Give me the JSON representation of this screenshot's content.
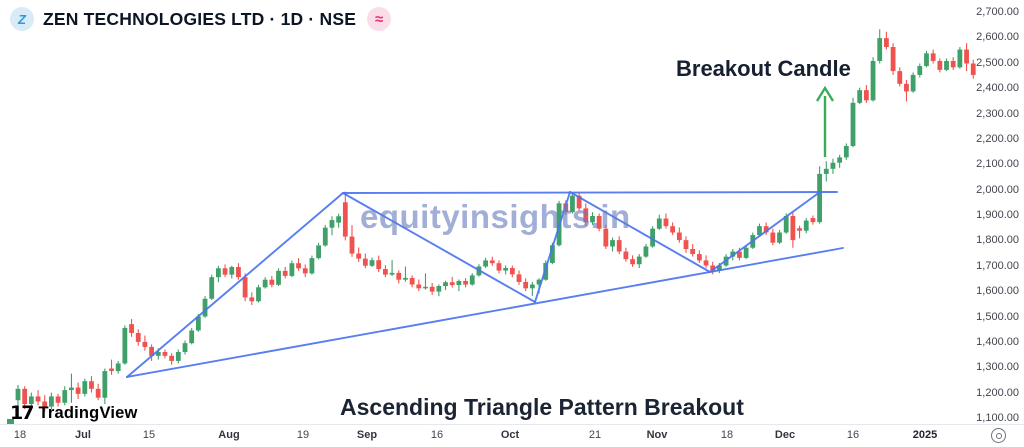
{
  "header": {
    "symbol_title": "ZEN TECHNOLOGIES LTD · 1D · NSE",
    "logo_glyph": "Z",
    "badge_glyph": "≈"
  },
  "annotations": {
    "watermark": "equityinsights.in",
    "breakout_label": "Breakout Candle",
    "pattern_label": "Ascending Triangle Pattern Breakout"
  },
  "attribution": {
    "glyph": "17",
    "text": "TradingView"
  },
  "icons": {
    "settings": "gear-icon"
  },
  "colors": {
    "up": "#40a06a",
    "down": "#ef5350",
    "trendline": "#4a74f0",
    "arrow": "#3cab57",
    "watermark": "rgba(104,124,189,0.62)"
  },
  "chart_data": {
    "type": "candlestick",
    "title": "ZEN TECHNOLOGIES LTD",
    "interval": "1D",
    "exchange": "NSE",
    "ylim": [
      1050,
      2730
    ],
    "grid": false,
    "y_axis": {
      "ticks": [
        {
          "label": "2,700.00",
          "price": 2700
        },
        {
          "label": "2,600.00",
          "price": 2600
        },
        {
          "label": "2,500.00",
          "price": 2500
        },
        {
          "label": "2,400.00",
          "price": 2400
        },
        {
          "label": "2,300.00",
          "price": 2300
        },
        {
          "label": "2,200.00",
          "price": 2200
        },
        {
          "label": "2,100.00",
          "price": 2100
        },
        {
          "label": "2,000.00",
          "price": 2000
        },
        {
          "label": "1,900.00",
          "price": 1900
        },
        {
          "label": "1,800.00",
          "price": 1800
        },
        {
          "label": "1,700.00",
          "price": 1700
        },
        {
          "label": "1,600.00",
          "price": 1600
        },
        {
          "label": "1,500.00",
          "price": 1500
        },
        {
          "label": "1,400.00",
          "price": 1400
        },
        {
          "label": "1,300.00",
          "price": 1300
        },
        {
          "label": "1,200.00",
          "price": 1200
        },
        {
          "label": "1,100.00",
          "price": 1100
        }
      ]
    },
    "x_axis": {
      "ticks": [
        {
          "label": "18",
          "x": 20,
          "kind": "d"
        },
        {
          "label": "Jul",
          "x": 83,
          "kind": "m"
        },
        {
          "label": "15",
          "x": 149,
          "kind": "d"
        },
        {
          "label": "Aug",
          "x": 229,
          "kind": "m"
        },
        {
          "label": "19",
          "x": 303,
          "kind": "d"
        },
        {
          "label": "Sep",
          "x": 367,
          "kind": "m"
        },
        {
          "label": "16",
          "x": 437,
          "kind": "d"
        },
        {
          "label": "Oct",
          "x": 510,
          "kind": "m"
        },
        {
          "label": "21",
          "x": 595,
          "kind": "d"
        },
        {
          "label": "Nov",
          "x": 657,
          "kind": "m"
        },
        {
          "label": "18",
          "x": 727,
          "kind": "d"
        },
        {
          "label": "Dec",
          "x": 785,
          "kind": "m"
        },
        {
          "label": "16",
          "x": 853,
          "kind": "d"
        },
        {
          "label": "2025",
          "x": 925,
          "kind": "y"
        }
      ]
    },
    "candles": [
      [
        1170,
        1230,
        1150,
        1215
      ],
      [
        1215,
        1225,
        1135,
        1155
      ],
      [
        1155,
        1200,
        1140,
        1185
      ],
      [
        1185,
        1210,
        1150,
        1165
      ],
      [
        1165,
        1190,
        1125,
        1145
      ],
      [
        1145,
        1200,
        1135,
        1185
      ],
      [
        1185,
        1195,
        1145,
        1160
      ],
      [
        1160,
        1225,
        1150,
        1210
      ],
      [
        1210,
        1275,
        1160,
        1220
      ],
      [
        1220,
        1240,
        1175,
        1195
      ],
      [
        1195,
        1255,
        1185,
        1245
      ],
      [
        1245,
        1265,
        1200,
        1215
      ],
      [
        1215,
        1235,
        1170,
        1180
      ],
      [
        1180,
        1295,
        1155,
        1285
      ],
      [
        1295,
        1330,
        1270,
        1285
      ],
      [
        1285,
        1325,
        1275,
        1315
      ],
      [
        1315,
        1465,
        1310,
        1455
      ],
      [
        1470,
        1490,
        1420,
        1435
      ],
      [
        1435,
        1450,
        1385,
        1400
      ],
      [
        1400,
        1425,
        1365,
        1380
      ],
      [
        1380,
        1390,
        1325,
        1345
      ],
      [
        1345,
        1375,
        1330,
        1360
      ],
      [
        1360,
        1370,
        1335,
        1345
      ],
      [
        1345,
        1355,
        1310,
        1325
      ],
      [
        1325,
        1370,
        1315,
        1360
      ],
      [
        1360,
        1405,
        1350,
        1395
      ],
      [
        1395,
        1455,
        1390,
        1445
      ],
      [
        1445,
        1510,
        1440,
        1500
      ],
      [
        1500,
        1580,
        1495,
        1570
      ],
      [
        1570,
        1665,
        1565,
        1655
      ],
      [
        1655,
        1700,
        1635,
        1690
      ],
      [
        1690,
        1705,
        1655,
        1665
      ],
      [
        1665,
        1700,
        1650,
        1695
      ],
      [
        1695,
        1710,
        1645,
        1655
      ],
      [
        1655,
        1670,
        1560,
        1575
      ],
      [
        1575,
        1595,
        1545,
        1560
      ],
      [
        1560,
        1625,
        1555,
        1615
      ],
      [
        1615,
        1655,
        1610,
        1645
      ],
      [
        1645,
        1660,
        1615,
        1625
      ],
      [
        1625,
        1690,
        1620,
        1680
      ],
      [
        1680,
        1695,
        1650,
        1660
      ],
      [
        1660,
        1720,
        1655,
        1710
      ],
      [
        1710,
        1730,
        1680,
        1690
      ],
      [
        1690,
        1705,
        1655,
        1670
      ],
      [
        1670,
        1740,
        1665,
        1730
      ],
      [
        1730,
        1790,
        1725,
        1780
      ],
      [
        1780,
        1860,
        1775,
        1850
      ],
      [
        1850,
        1895,
        1820,
        1880
      ],
      [
        1870,
        1905,
        1850,
        1895
      ],
      [
        1950,
        1992,
        1800,
        1815
      ],
      [
        1815,
        1860,
        1735,
        1748
      ],
      [
        1748,
        1772,
        1715,
        1728
      ],
      [
        1728,
        1748,
        1690,
        1700
      ],
      [
        1700,
        1732,
        1695,
        1722
      ],
      [
        1722,
        1740,
        1675,
        1687
      ],
      [
        1687,
        1702,
        1655,
        1665
      ],
      [
        1665,
        1722,
        1660,
        1672
      ],
      [
        1672,
        1682,
        1630,
        1645
      ],
      [
        1645,
        1697,
        1637,
        1652
      ],
      [
        1652,
        1662,
        1615,
        1626
      ],
      [
        1626,
        1646,
        1600,
        1611
      ],
      [
        1611,
        1670,
        1606,
        1617
      ],
      [
        1617,
        1632,
        1585,
        1598
      ],
      [
        1598,
        1626,
        1580,
        1620
      ],
      [
        1620,
        1641,
        1604,
        1635
      ],
      [
        1635,
        1656,
        1614,
        1624
      ],
      [
        1624,
        1646,
        1600,
        1640
      ],
      [
        1640,
        1651,
        1615,
        1626
      ],
      [
        1626,
        1671,
        1621,
        1662
      ],
      [
        1662,
        1706,
        1657,
        1697
      ],
      [
        1697,
        1731,
        1691,
        1721
      ],
      [
        1721,
        1736,
        1700,
        1710
      ],
      [
        1710,
        1721,
        1670,
        1681
      ],
      [
        1681,
        1701,
        1666,
        1691
      ],
      [
        1691,
        1701,
        1655,
        1666
      ],
      [
        1666,
        1681,
        1625,
        1636
      ],
      [
        1636,
        1651,
        1600,
        1611
      ],
      [
        1611,
        1636,
        1581,
        1626
      ],
      [
        1626,
        1651,
        1591,
        1645
      ],
      [
        1645,
        1721,
        1641,
        1711
      ],
      [
        1711,
        1791,
        1706,
        1781
      ],
      [
        1781,
        1956,
        1776,
        1946
      ],
      [
        1946,
        1958,
        1900,
        1911
      ],
      [
        1911,
        1990,
        1906,
        1976
      ],
      [
        1976,
        1986,
        1916,
        1926
      ],
      [
        1926,
        1946,
        1856,
        1871
      ],
      [
        1871,
        1911,
        1861,
        1896
      ],
      [
        1896,
        1906,
        1836,
        1846
      ],
      [
        1846,
        1861,
        1766,
        1776
      ],
      [
        1776,
        1811,
        1756,
        1801
      ],
      [
        1801,
        1816,
        1746,
        1756
      ],
      [
        1756,
        1771,
        1716,
        1726
      ],
      [
        1726,
        1741,
        1696,
        1706
      ],
      [
        1706,
        1746,
        1691,
        1736
      ],
      [
        1736,
        1786,
        1731,
        1776
      ],
      [
        1776,
        1856,
        1771,
        1846
      ],
      [
        1846,
        1901,
        1841,
        1886
      ],
      [
        1886,
        1906,
        1846,
        1856
      ],
      [
        1856,
        1871,
        1821,
        1831
      ],
      [
        1831,
        1851,
        1791,
        1801
      ],
      [
        1801,
        1816,
        1751,
        1766
      ],
      [
        1766,
        1786,
        1736,
        1746
      ],
      [
        1746,
        1761,
        1711,
        1721
      ],
      [
        1721,
        1741,
        1691,
        1701
      ],
      [
        1701,
        1716,
        1666,
        1681
      ],
      [
        1681,
        1711,
        1671,
        1701
      ],
      [
        1701,
        1746,
        1696,
        1736
      ],
      [
        1736,
        1766,
        1721,
        1756
      ],
      [
        1756,
        1771,
        1721,
        1731
      ],
      [
        1731,
        1781,
        1726,
        1771
      ],
      [
        1771,
        1831,
        1766,
        1821
      ],
      [
        1821,
        1866,
        1816,
        1856
      ],
      [
        1856,
        1871,
        1821,
        1831
      ],
      [
        1831,
        1846,
        1781,
        1791
      ],
      [
        1791,
        1841,
        1786,
        1831
      ],
      [
        1831,
        1906,
        1826,
        1896
      ],
      [
        1896,
        1911,
        1771,
        1801
      ],
      [
        1848,
        1858,
        1808,
        1838
      ],
      [
        1838,
        1888,
        1828,
        1878
      ],
      [
        1888,
        1898,
        1862,
        1872
      ],
      [
        1872,
        2092,
        1866,
        2062
      ],
      [
        2062,
        2112,
        2032,
        2082
      ],
      [
        2082,
        2122,
        2062,
        2106
      ],
      [
        2106,
        2137,
        2086,
        2127
      ],
      [
        2127,
        2182,
        2117,
        2172
      ],
      [
        2172,
        2362,
        2167,
        2342
      ],
      [
        2342,
        2402,
        2337,
        2392
      ],
      [
        2392,
        2412,
        2342,
        2352
      ],
      [
        2352,
        2522,
        2347,
        2507
      ],
      [
        2507,
        2632,
        2497,
        2597
      ],
      [
        2597,
        2622,
        2552,
        2562
      ],
      [
        2562,
        2577,
        2452,
        2467
      ],
      [
        2467,
        2482,
        2407,
        2417
      ],
      [
        2417,
        2432,
        2347,
        2387
      ],
      [
        2387,
        2462,
        2382,
        2452
      ],
      [
        2452,
        2497,
        2442,
        2487
      ],
      [
        2487,
        2547,
        2482,
        2537
      ],
      [
        2537,
        2552,
        2497,
        2507
      ],
      [
        2507,
        2517,
        2462,
        2472
      ],
      [
        2472,
        2517,
        2467,
        2507
      ],
      [
        2507,
        2522,
        2472,
        2482
      ],
      [
        2482,
        2562,
        2477,
        2552
      ],
      [
        2552,
        2577,
        2467,
        2497
      ],
      [
        2497,
        2512,
        2437,
        2452
      ]
    ],
    "pattern_lines": [
      [
        127,
        377,
        343,
        193
      ],
      [
        127,
        377,
        843,
        248
      ],
      [
        343,
        193,
        837,
        192
      ],
      [
        343,
        193,
        535,
        302
      ],
      [
        535,
        302,
        570,
        192
      ],
      [
        570,
        192,
        710,
        272
      ],
      [
        710,
        272,
        820,
        192
      ]
    ],
    "arrow": {
      "x": 825,
      "from_y": 157,
      "to_y": 88
    }
  }
}
